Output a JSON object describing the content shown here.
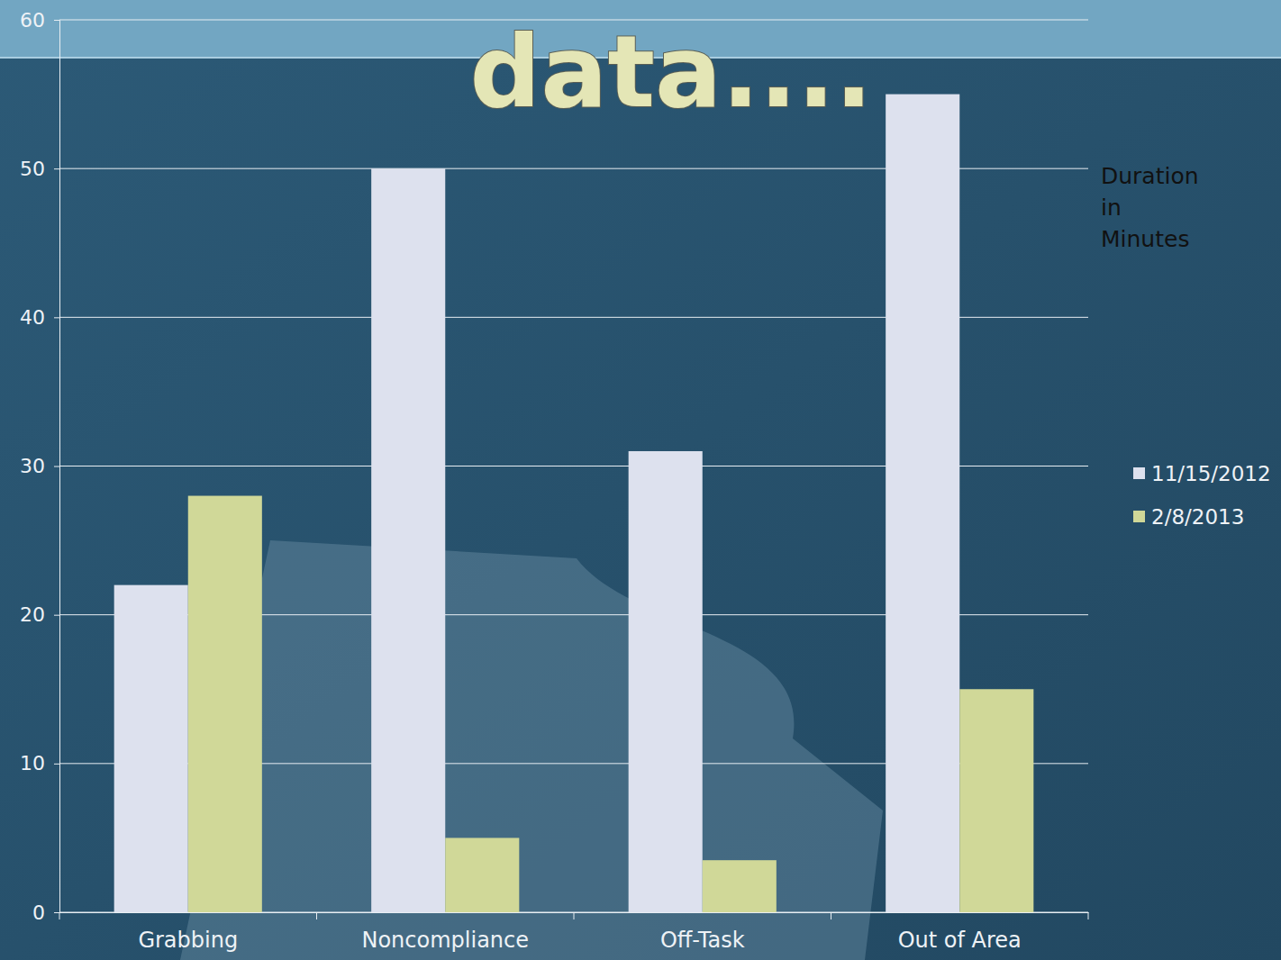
{
  "chart_data": {
    "type": "bar",
    "title": "data....",
    "ylabel": "Duration in Minutes",
    "categories": [
      "Grabbing",
      "Noncompliance",
      "Off-Task",
      "Out of Area"
    ],
    "series": [
      {
        "name": "11/15/2012",
        "color": "#dde1ee",
        "values": [
          22,
          50,
          31,
          55
        ]
      },
      {
        "name": "2/8/2013",
        "color": "#d0d898",
        "values": [
          28,
          5,
          3.5,
          15
        ]
      }
    ],
    "ylim": [
      0,
      60
    ],
    "yticks": [
      0,
      10,
      20,
      30,
      40,
      50,
      60
    ],
    "grid": true,
    "legend": "right"
  }
}
